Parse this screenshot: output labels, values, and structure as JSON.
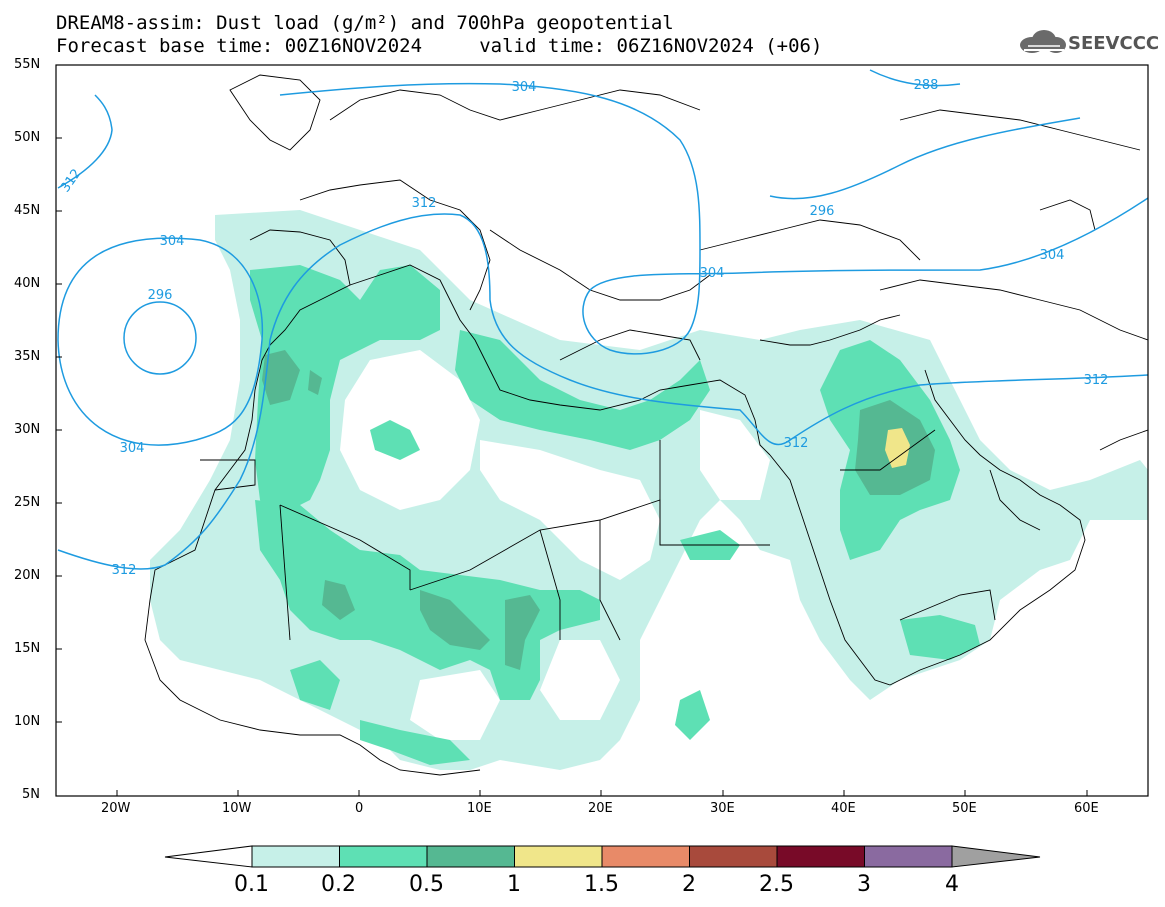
{
  "title": {
    "line1": "DREAM8-assim: Dust load (g/m²) and 700hPa geopotential",
    "line2": "Forecast base time: 00Z16NOV2024     valid time: 06Z16NOV2024 (+06)"
  },
  "logo": {
    "text": "SEEVCCC",
    "icon": "cloud-icon"
  },
  "axes": {
    "lat_labels": [
      "55N",
      "50N",
      "45N",
      "40N",
      "35N",
      "30N",
      "25N",
      "20N",
      "15N",
      "10N",
      "5N"
    ],
    "lon_labels": [
      "20W",
      "10W",
      "0",
      "10E",
      "20E",
      "30E",
      "40E",
      "50E",
      "60E"
    ]
  },
  "chart_data": {
    "type": "heatmap",
    "lon_range": [
      -25,
      65
    ],
    "lat_range": [
      5,
      55
    ],
    "colorbar": {
      "levels": [
        "0.1",
        "0.2",
        "0.5",
        "1",
        "1.5",
        "2",
        "2.5",
        "3",
        "4"
      ],
      "colors": [
        "#c6f0e8",
        "#5ee0b4",
        "#55b892",
        "#f0e68a",
        "#e88a68",
        "#a84a3c",
        "#780a28",
        "#8a6aa0",
        "#a0a0a0"
      ]
    },
    "contours": [
      {
        "label": "296",
        "lon": -17,
        "lat": 38.8
      },
      {
        "label": "304",
        "lon": -16,
        "lat": 43.3
      },
      {
        "label": "304",
        "lon": -19.5,
        "lat": 28.8
      },
      {
        "label": "312",
        "lon": -24,
        "lat": 46.5
      },
      {
        "label": "312",
        "lon": -21,
        "lat": 20.5
      },
      {
        "label": "312",
        "lon": 3.5,
        "lat": 45.5
      },
      {
        "label": "304",
        "lon": 4,
        "lat": 54.5
      },
      {
        "label": "288",
        "lon": 47,
        "lat": 54.3
      },
      {
        "label": "296",
        "lon": 37,
        "lat": 45.1
      },
      {
        "label": "304",
        "lon": 28.5,
        "lat": 40.8
      },
      {
        "label": "304",
        "lon": 62,
        "lat": 42.1
      },
      {
        "label": "312",
        "lon": 35.5,
        "lat": 29.6
      },
      {
        "label": "312",
        "lon": 63.5,
        "lat": 32.7
      }
    ]
  }
}
